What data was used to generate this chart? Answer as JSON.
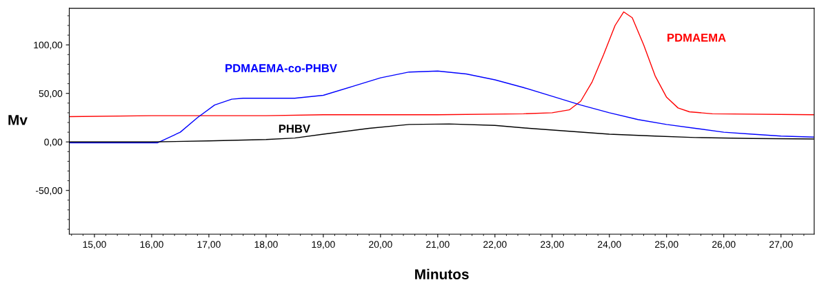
{
  "chart_data": {
    "type": "line",
    "xlabel": "Minutos",
    "ylabel": "Mv",
    "xlim": [
      14.56,
      27.58
    ],
    "ylim": [
      -95,
      137.6
    ],
    "xticks": [
      {
        "value": 15,
        "label": "15,00"
      },
      {
        "value": 16,
        "label": "16,00"
      },
      {
        "value": 17,
        "label": "17,00"
      },
      {
        "value": 18,
        "label": "18,00"
      },
      {
        "value": 19,
        "label": "19,00"
      },
      {
        "value": 20,
        "label": "20,00"
      },
      {
        "value": 21,
        "label": "21,00"
      },
      {
        "value": 22,
        "label": "22,00"
      },
      {
        "value": 23,
        "label": "23,00"
      },
      {
        "value": 24,
        "label": "24,00"
      },
      {
        "value": 25,
        "label": "25,00"
      },
      {
        "value": 26,
        "label": "26,00"
      },
      {
        "value": 27,
        "label": "27,00"
      }
    ],
    "yticks": [
      {
        "value": -50,
        "label": "-50,00"
      },
      {
        "value": 0,
        "label": "0,00"
      },
      {
        "value": 50,
        "label": "50,00"
      },
      {
        "value": 100,
        "label": "100,00"
      }
    ],
    "grid": false,
    "legend": false,
    "marker": "none",
    "line_style": "solid",
    "series": [
      {
        "name": "PDMAEMA",
        "color": "#ff0000",
        "x": [
          14.56,
          16,
          18,
          19,
          21,
          22.5,
          23.0,
          23.3,
          23.5,
          23.7,
          23.9,
          24.1,
          24.25,
          24.4,
          24.6,
          24.8,
          25.0,
          25.2,
          25.4,
          25.8,
          27.58
        ],
        "values": [
          26,
          27,
          27,
          28,
          28,
          29,
          30,
          33,
          42,
          62,
          90,
          120,
          134,
          128,
          100,
          68,
          46,
          35,
          31,
          29,
          28
        ]
      },
      {
        "name": "PDMAEMA-co-PHBV",
        "color": "#0000ff",
        "x": [
          14.56,
          16.1,
          16.5,
          16.8,
          17.1,
          17.4,
          17.6,
          18.5,
          19,
          19.5,
          20,
          20.5,
          21,
          21.5,
          22,
          22.5,
          23,
          23.5,
          24,
          24.5,
          25,
          25.5,
          26,
          26.5,
          27,
          27.58
        ],
        "values": [
          -1,
          -1,
          10,
          25,
          38,
          44,
          45,
          45,
          48,
          57,
          66,
          72,
          73,
          70,
          64,
          56,
          47,
          38,
          30,
          23,
          18,
          14,
          10,
          8,
          6,
          5
        ]
      },
      {
        "name": "PHBV",
        "color": "#000000",
        "x": [
          14.56,
          16,
          17,
          18,
          18.5,
          19,
          19.8,
          20.5,
          21.2,
          22,
          22.6,
          23.3,
          24,
          24.8,
          25.5,
          26.5,
          27.58
        ],
        "values": [
          0,
          0,
          1,
          2.5,
          4,
          8,
          14,
          18,
          18.5,
          17,
          14,
          11,
          8,
          6,
          4.5,
          3.5,
          3
        ]
      }
    ]
  }
}
